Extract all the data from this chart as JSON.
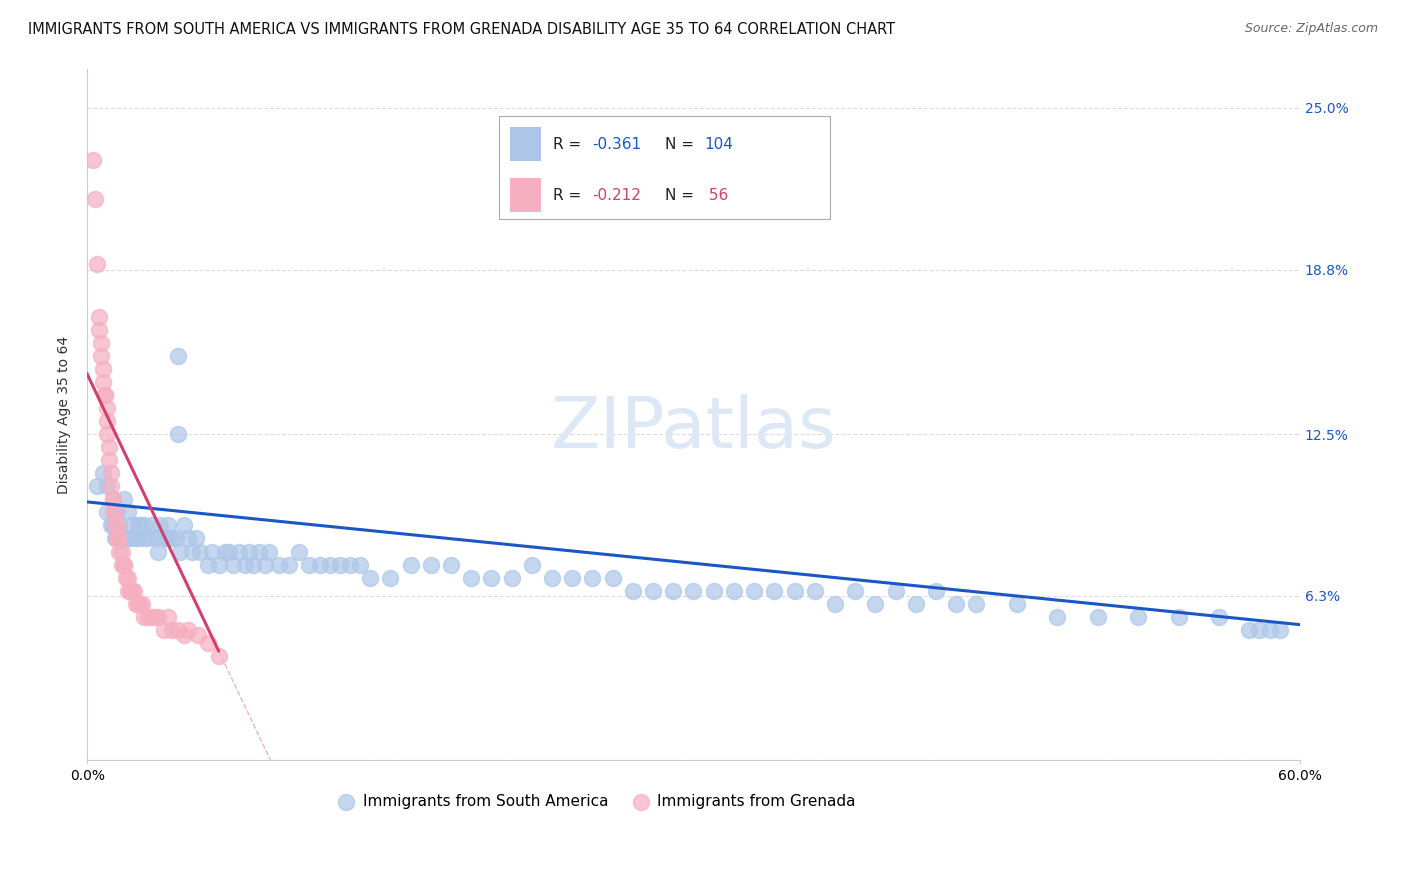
{
  "title": "IMMIGRANTS FROM SOUTH AMERICA VS IMMIGRANTS FROM GRENADA DISABILITY AGE 35 TO 64 CORRELATION CHART",
  "source": "Source: ZipAtlas.com",
  "ylabel": "Disability Age 35 to 64",
  "watermark": "ZIPatlas",
  "blue_R": -0.361,
  "blue_N": 104,
  "pink_R": -0.212,
  "pink_N": 56,
  "blue_label": "Immigrants from South America",
  "pink_label": "Immigrants from Grenada",
  "blue_color": "#adc6e8",
  "blue_line_color": "#1a56c4",
  "pink_color": "#f5afc0",
  "pink_line_color": "#d04070",
  "xlim": [
    0.0,
    0.6
  ],
  "ylim": [
    0.0,
    0.265
  ],
  "background_color": "#ffffff",
  "grid_color": "#dddddd",
  "right_tick_blue": "#1a56c4",
  "title_fontsize": 10.5,
  "tick_fontsize": 10,
  "legend_fontsize": 11,
  "watermark_fontsize": 52,
  "watermark_color": "#dce8f5",
  "blue_scatter_x": [
    0.005,
    0.008,
    0.01,
    0.01,
    0.012,
    0.013,
    0.014,
    0.015,
    0.015,
    0.016,
    0.017,
    0.018,
    0.018,
    0.02,
    0.02,
    0.022,
    0.022,
    0.024,
    0.025,
    0.025,
    0.026,
    0.028,
    0.028,
    0.03,
    0.032,
    0.034,
    0.035,
    0.036,
    0.038,
    0.04,
    0.04,
    0.042,
    0.044,
    0.045,
    0.046,
    0.048,
    0.05,
    0.052,
    0.054,
    0.056,
    0.06,
    0.062,
    0.065,
    0.068,
    0.07,
    0.072,
    0.075,
    0.078,
    0.08,
    0.082,
    0.085,
    0.088,
    0.09,
    0.095,
    0.1,
    0.105,
    0.11,
    0.115,
    0.12,
    0.125,
    0.13,
    0.135,
    0.14,
    0.15,
    0.16,
    0.17,
    0.18,
    0.19,
    0.2,
    0.21,
    0.22,
    0.23,
    0.24,
    0.25,
    0.26,
    0.27,
    0.28,
    0.3,
    0.32,
    0.34,
    0.36,
    0.38,
    0.4,
    0.42,
    0.44,
    0.46,
    0.48,
    0.5,
    0.52,
    0.54,
    0.56,
    0.575,
    0.58,
    0.585,
    0.59,
    0.29,
    0.31,
    0.33,
    0.35,
    0.37,
    0.39,
    0.41,
    0.43,
    0.045
  ],
  "blue_scatter_y": [
    0.105,
    0.11,
    0.095,
    0.105,
    0.09,
    0.09,
    0.085,
    0.085,
    0.095,
    0.09,
    0.085,
    0.1,
    0.085,
    0.085,
    0.095,
    0.09,
    0.085,
    0.085,
    0.085,
    0.09,
    0.09,
    0.085,
    0.09,
    0.085,
    0.09,
    0.085,
    0.08,
    0.09,
    0.085,
    0.085,
    0.09,
    0.085,
    0.085,
    0.125,
    0.08,
    0.09,
    0.085,
    0.08,
    0.085,
    0.08,
    0.075,
    0.08,
    0.075,
    0.08,
    0.08,
    0.075,
    0.08,
    0.075,
    0.08,
    0.075,
    0.08,
    0.075,
    0.08,
    0.075,
    0.075,
    0.08,
    0.075,
    0.075,
    0.075,
    0.075,
    0.075,
    0.075,
    0.07,
    0.07,
    0.075,
    0.075,
    0.075,
    0.07,
    0.07,
    0.07,
    0.075,
    0.07,
    0.07,
    0.07,
    0.07,
    0.065,
    0.065,
    0.065,
    0.065,
    0.065,
    0.065,
    0.065,
    0.065,
    0.065,
    0.06,
    0.06,
    0.055,
    0.055,
    0.055,
    0.055,
    0.055,
    0.05,
    0.05,
    0.05,
    0.05,
    0.065,
    0.065,
    0.065,
    0.065,
    0.06,
    0.06,
    0.06,
    0.06,
    0.155
  ],
  "pink_scatter_x": [
    0.003,
    0.004,
    0.005,
    0.006,
    0.006,
    0.007,
    0.007,
    0.008,
    0.008,
    0.009,
    0.009,
    0.01,
    0.01,
    0.01,
    0.011,
    0.011,
    0.012,
    0.012,
    0.013,
    0.013,
    0.013,
    0.014,
    0.014,
    0.015,
    0.015,
    0.015,
    0.016,
    0.016,
    0.017,
    0.017,
    0.018,
    0.018,
    0.019,
    0.02,
    0.02,
    0.021,
    0.022,
    0.023,
    0.024,
    0.025,
    0.026,
    0.027,
    0.028,
    0.03,
    0.032,
    0.034,
    0.035,
    0.038,
    0.04,
    0.042,
    0.045,
    0.048,
    0.05,
    0.055,
    0.06,
    0.065
  ],
  "pink_scatter_y": [
    0.23,
    0.215,
    0.19,
    0.17,
    0.165,
    0.16,
    0.155,
    0.15,
    0.145,
    0.14,
    0.14,
    0.135,
    0.13,
    0.125,
    0.12,
    0.115,
    0.11,
    0.105,
    0.1,
    0.1,
    0.095,
    0.095,
    0.09,
    0.09,
    0.085,
    0.085,
    0.085,
    0.08,
    0.08,
    0.075,
    0.075,
    0.075,
    0.07,
    0.07,
    0.065,
    0.065,
    0.065,
    0.065,
    0.06,
    0.06,
    0.06,
    0.06,
    0.055,
    0.055,
    0.055,
    0.055,
    0.055,
    0.05,
    0.055,
    0.05,
    0.05,
    0.048,
    0.05,
    0.048,
    0.045,
    0.04
  ],
  "blue_trendline_x": [
    0.0,
    0.6
  ],
  "blue_trendline_y": [
    0.099,
    0.052
  ],
  "pink_trendline_x": [
    0.0,
    0.065
  ],
  "pink_trendline_y": [
    0.148,
    0.042
  ]
}
